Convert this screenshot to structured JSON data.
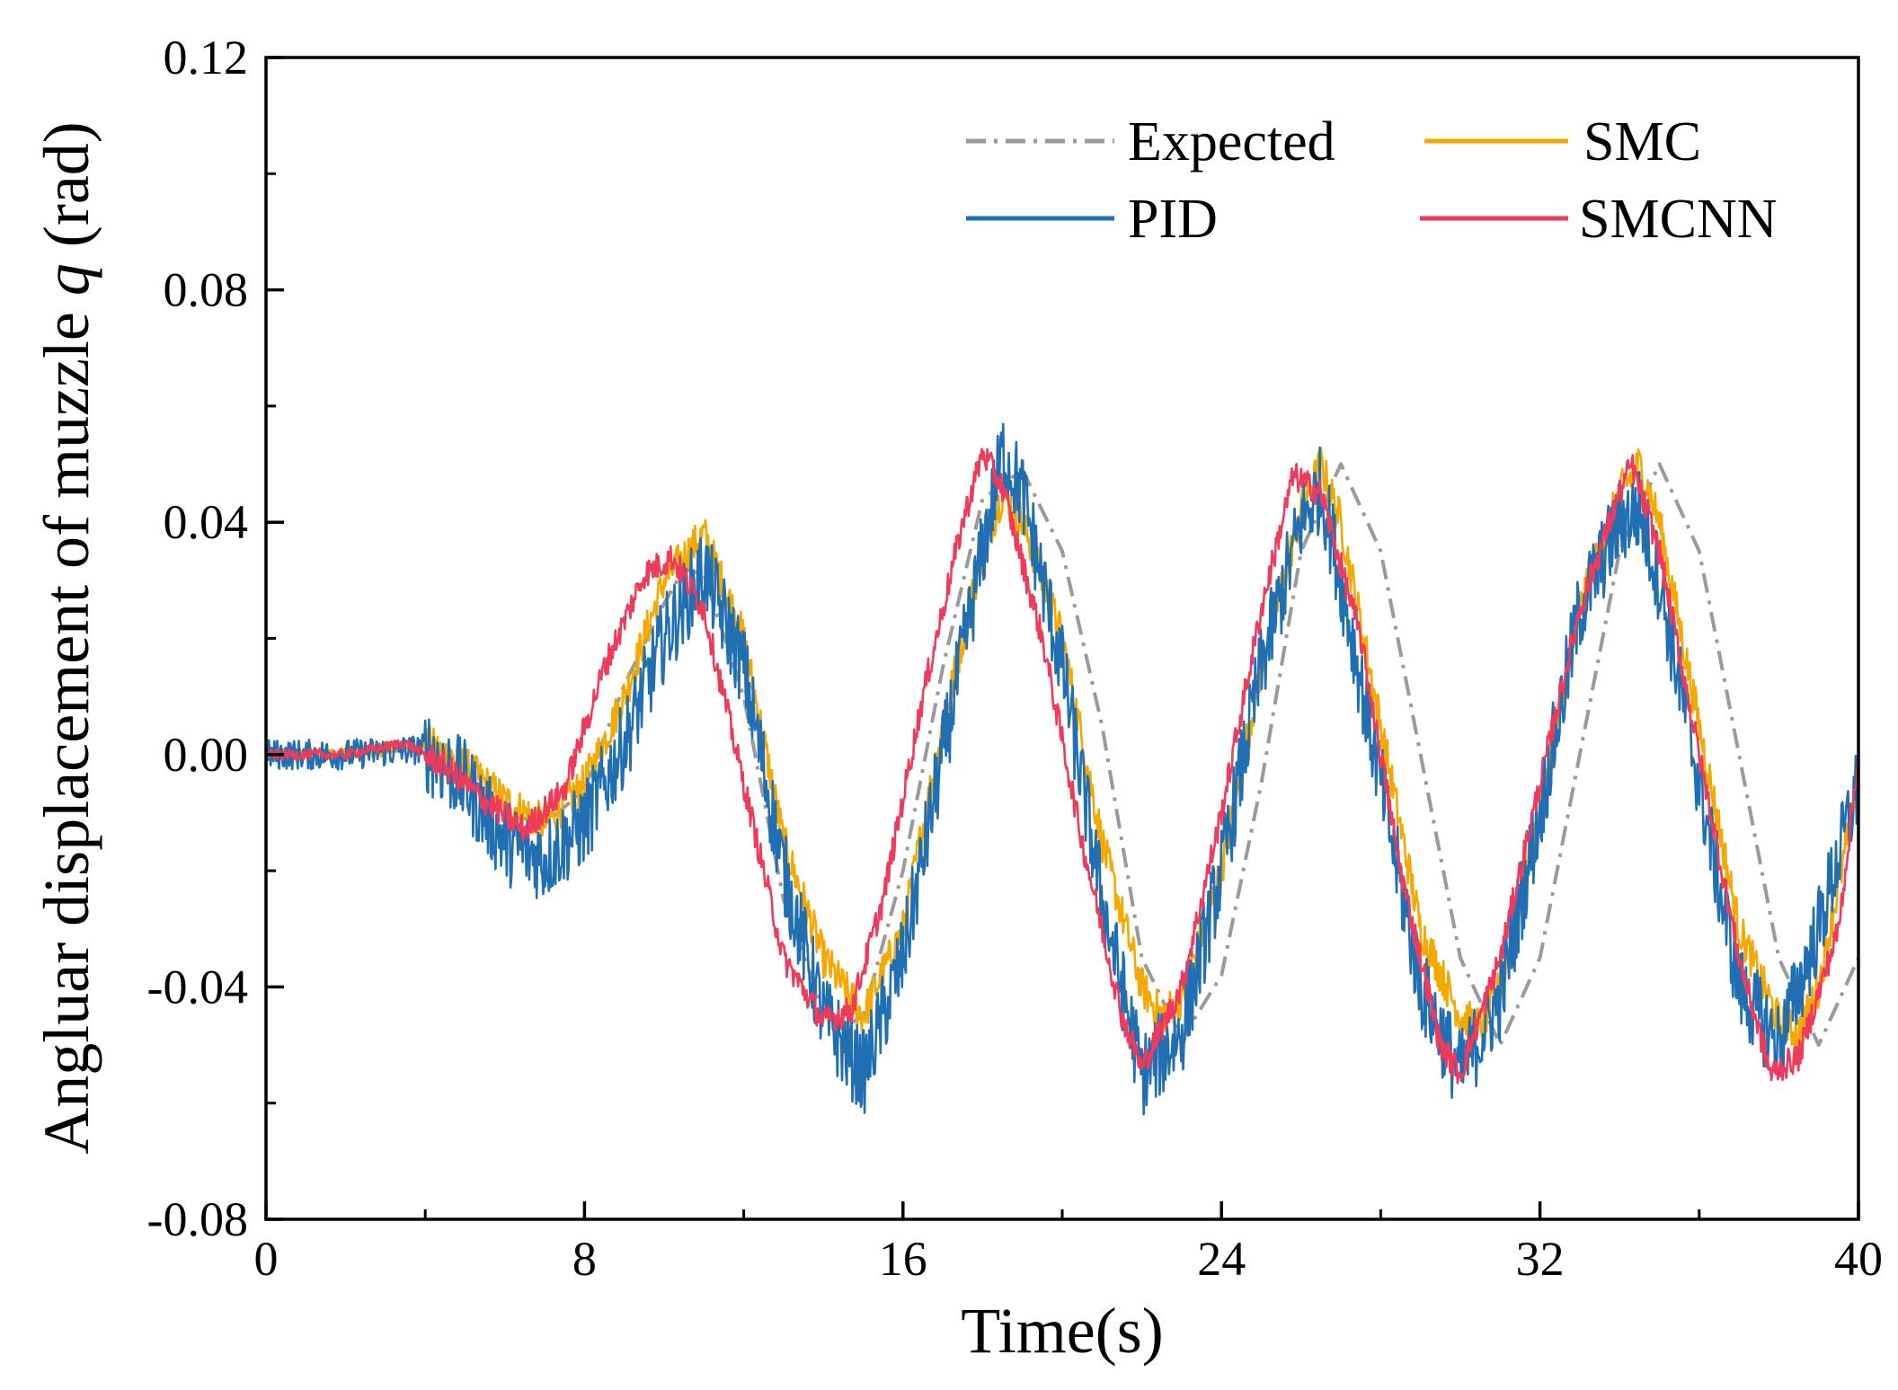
{
  "chart_data": {
    "type": "line",
    "title": "",
    "xlabel": "Time(s)",
    "ylabel": {
      "prefix": "Angluar displacement of muzzle ",
      "symbol": "q",
      "suffix": " (rad)"
    },
    "xlim": [
      0,
      40
    ],
    "ylim": [
      -0.08,
      0.12
    ],
    "xticks": [
      0,
      8,
      16,
      24,
      32,
      40
    ],
    "xtick_labels": [
      "0",
      "8",
      "16",
      "24",
      "32",
      "40"
    ],
    "yticks": [
      -0.08,
      -0.04,
      0.0,
      0.04,
      0.08,
      0.12
    ],
    "ytick_labels": [
      "-0.08",
      "-0.04",
      "0.00",
      "0.04",
      "0.08",
      "0.12"
    ],
    "grid": false,
    "legend_position": "top-right",
    "series": [
      {
        "name": "Expected",
        "color": "#9a9a9a",
        "style": "dash-dot",
        "x": [
          0,
          2,
          4,
          5,
          6,
          7,
          8,
          9,
          10,
          10.5,
          11,
          12,
          13,
          14,
          14.5,
          15,
          16,
          17,
          18,
          19,
          20,
          21,
          22,
          23,
          24,
          25,
          26,
          27,
          28,
          29,
          30,
          31,
          32,
          33,
          34,
          35,
          36,
          37,
          38,
          39,
          40
        ],
        "values": [
          0,
          0,
          0.001,
          -0.004,
          -0.01,
          -0.012,
          -0.006,
          0.012,
          0.026,
          0.032,
          0.031,
          0.01,
          -0.025,
          -0.044,
          -0.047,
          -0.045,
          -0.02,
          0.015,
          0.044,
          0.049,
          0.035,
          0.005,
          -0.035,
          -0.049,
          -0.038,
          -0.005,
          0.035,
          0.05,
          0.035,
          0.0,
          -0.035,
          -0.05,
          -0.035,
          0.0,
          0.035,
          0.05,
          0.035,
          0.0,
          -0.035,
          -0.05,
          -0.035
        ]
      },
      {
        "name": "SMC",
        "color": "#f5a800",
        "style": "solid",
        "x": [
          0,
          2,
          4,
          5,
          6,
          7,
          8,
          9,
          10,
          11,
          12,
          13,
          14,
          15,
          16,
          17,
          18,
          18.5,
          19,
          20,
          21,
          22,
          22.5,
          23,
          24,
          25,
          26,
          26.5,
          27,
          28,
          29,
          30,
          30.5,
          31,
          32,
          33,
          34,
          34.5,
          35,
          36,
          37,
          38,
          38.5,
          39,
          40
        ],
        "values": [
          0,
          0,
          0.002,
          -0.002,
          -0.008,
          -0.012,
          -0.005,
          0.01,
          0.03,
          0.038,
          0.02,
          -0.015,
          -0.035,
          -0.045,
          -0.03,
          0.005,
          0.035,
          0.045,
          0.04,
          0.02,
          -0.015,
          -0.04,
          -0.045,
          -0.042,
          -0.02,
          0.015,
          0.042,
          0.05,
          0.04,
          0.005,
          -0.03,
          -0.045,
          -0.047,
          -0.04,
          -0.01,
          0.025,
          0.045,
          0.05,
          0.04,
          0.005,
          -0.03,
          -0.046,
          -0.048,
          -0.04,
          -0.005
        ]
      },
      {
        "name": "PID",
        "color": "#1f6fb2",
        "style": "solid",
        "x": [
          0,
          2,
          4,
          5,
          6,
          7,
          8,
          9,
          10,
          11,
          12,
          13,
          14,
          15,
          16,
          17,
          18,
          18.5,
          19,
          20,
          21,
          22,
          23,
          24,
          25,
          26,
          26.5,
          27,
          28,
          29,
          30,
          31,
          32,
          33,
          34,
          34.5,
          35,
          36,
          37,
          38,
          39,
          40
        ],
        "values": [
          0,
          0,
          0.001,
          -0.005,
          -0.015,
          -0.018,
          -0.012,
          0.002,
          0.02,
          0.032,
          0.015,
          -0.02,
          -0.045,
          -0.055,
          -0.035,
          0.0,
          0.035,
          0.052,
          0.045,
          0.015,
          -0.025,
          -0.055,
          -0.048,
          -0.02,
          0.015,
          0.04,
          0.046,
          0.03,
          -0.005,
          -0.04,
          -0.055,
          -0.042,
          -0.01,
          0.025,
          0.04,
          0.042,
          0.03,
          -0.005,
          -0.04,
          -0.05,
          -0.03,
          -0.005
        ]
      },
      {
        "name": "SMCNN",
        "color": "#f03a5c",
        "style": "solid",
        "x": [
          0,
          2,
          3.5,
          4.5,
          5.5,
          6.5,
          7.5,
          8.5,
          9.5,
          10.2,
          11,
          12,
          13,
          14,
          14.7,
          15.5,
          16.5,
          17.5,
          18,
          18.5,
          19.5,
          20.5,
          21.5,
          22,
          23,
          24,
          25,
          25.8,
          26.5,
          27.5,
          28.5,
          29.5,
          30,
          31,
          32,
          33,
          34,
          34.3,
          35,
          36,
          37,
          37.8,
          38.5,
          39.5,
          40
        ],
        "values": [
          0,
          0,
          0.002,
          -0.002,
          -0.008,
          -0.013,
          -0.006,
          0.015,
          0.031,
          0.034,
          0.025,
          -0.005,
          -0.035,
          -0.046,
          -0.044,
          -0.025,
          0.01,
          0.04,
          0.052,
          0.046,
          0.02,
          -0.015,
          -0.045,
          -0.054,
          -0.04,
          -0.01,
          0.025,
          0.048,
          0.045,
          0.02,
          -0.02,
          -0.05,
          -0.055,
          -0.035,
          -0.005,
          0.025,
          0.045,
          0.05,
          0.035,
          0.0,
          -0.035,
          -0.055,
          -0.052,
          -0.03,
          0.0
        ]
      }
    ]
  }
}
